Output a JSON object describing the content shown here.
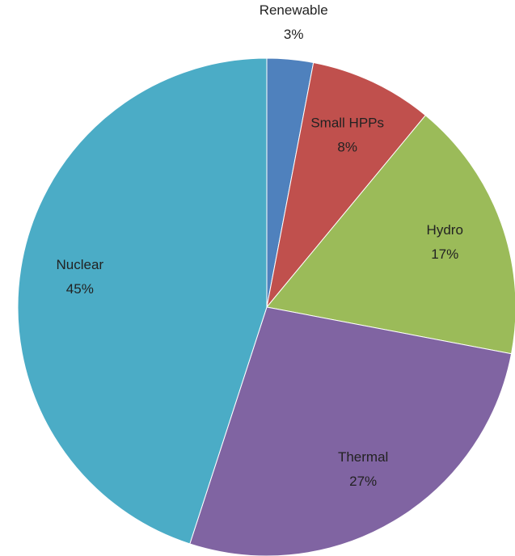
{
  "chart_data": {
    "type": "pie",
    "categories": [
      "Renewable",
      "Small HPPs",
      "Hydro",
      "Thermal",
      "Nuclear"
    ],
    "values": [
      3,
      8,
      17,
      27,
      45
    ],
    "value_labels": [
      "3%",
      "8%",
      "17%",
      "27%",
      "45%"
    ],
    "colors": [
      "#4f81bd",
      "#c0504d",
      "#9bbb59",
      "#8064a2",
      "#4bacc6"
    ]
  }
}
